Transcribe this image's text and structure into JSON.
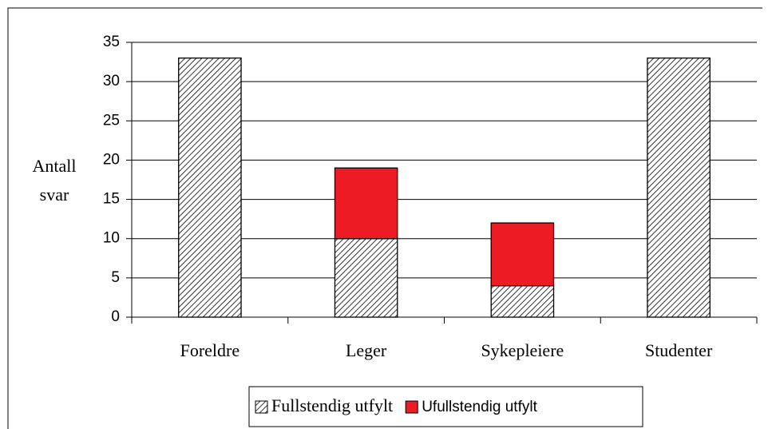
{
  "chart_data": {
    "type": "stacked_bar",
    "y_label": [
      "Antall",
      "svar"
    ],
    "categories": [
      "Foreldre",
      "Leger",
      "Sykepleiere",
      "Studenter"
    ],
    "series": [
      {
        "name": "Fullstendig utfylt",
        "color": "hatch",
        "values": [
          33,
          10,
          4,
          33
        ]
      },
      {
        "name": "Ufullstendig utfylt",
        "color": "#ed1c24",
        "values": [
          0,
          9,
          8,
          0
        ]
      }
    ],
    "ylim": [
      0,
      35
    ],
    "yticks": [
      0,
      5,
      10,
      15,
      20,
      25,
      30,
      35
    ],
    "grid": true,
    "legend": "bottom"
  }
}
